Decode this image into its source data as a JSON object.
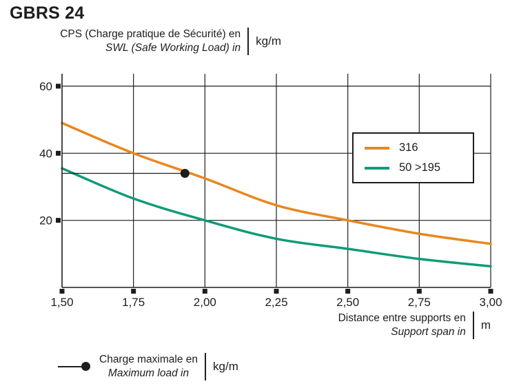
{
  "title": "GBRS 24",
  "colors": {
    "orange": "#E8871F",
    "teal": "#0F9B78",
    "axis": "#1d1d1b",
    "text": "#1d1d1b"
  },
  "y_axis_label": {
    "line1": "CPS (Charge pratique de Sécurité) en",
    "line2": "SWL (Safe Working Load) in",
    "unit": "kg/m"
  },
  "x_axis_label": {
    "line1": "Distance entre supports en",
    "line2": "Support span in",
    "unit": "m"
  },
  "max_load_legend": {
    "line1": "Charge maximale en",
    "line2": "Maximum load in",
    "unit": "kg/m"
  },
  "chart_data": {
    "type": "line",
    "x": [
      1.5,
      1.75,
      2.0,
      2.25,
      2.5,
      2.75,
      3.0
    ],
    "x_ticks": [
      "1,50",
      "1,75",
      "2,00",
      "2,25",
      "2,50",
      "2,75",
      "3,00"
    ],
    "y_ticks": [
      20,
      40,
      60
    ],
    "xlim": [
      1.5,
      3.0
    ],
    "ylim": [
      0,
      64
    ],
    "grid": true,
    "legend_position": "top-right",
    "series": [
      {
        "name": "316",
        "color": "#E8871F",
        "values": [
          49,
          40,
          32.5,
          24.5,
          20,
          16,
          13
        ]
      },
      {
        "name": "50 >195",
        "color": "#0F9B78",
        "values": [
          35.5,
          26.5,
          20,
          14.5,
          11.5,
          8.5,
          6.3
        ]
      }
    ],
    "marker": {
      "x": 1.93,
      "y": 34
    }
  }
}
